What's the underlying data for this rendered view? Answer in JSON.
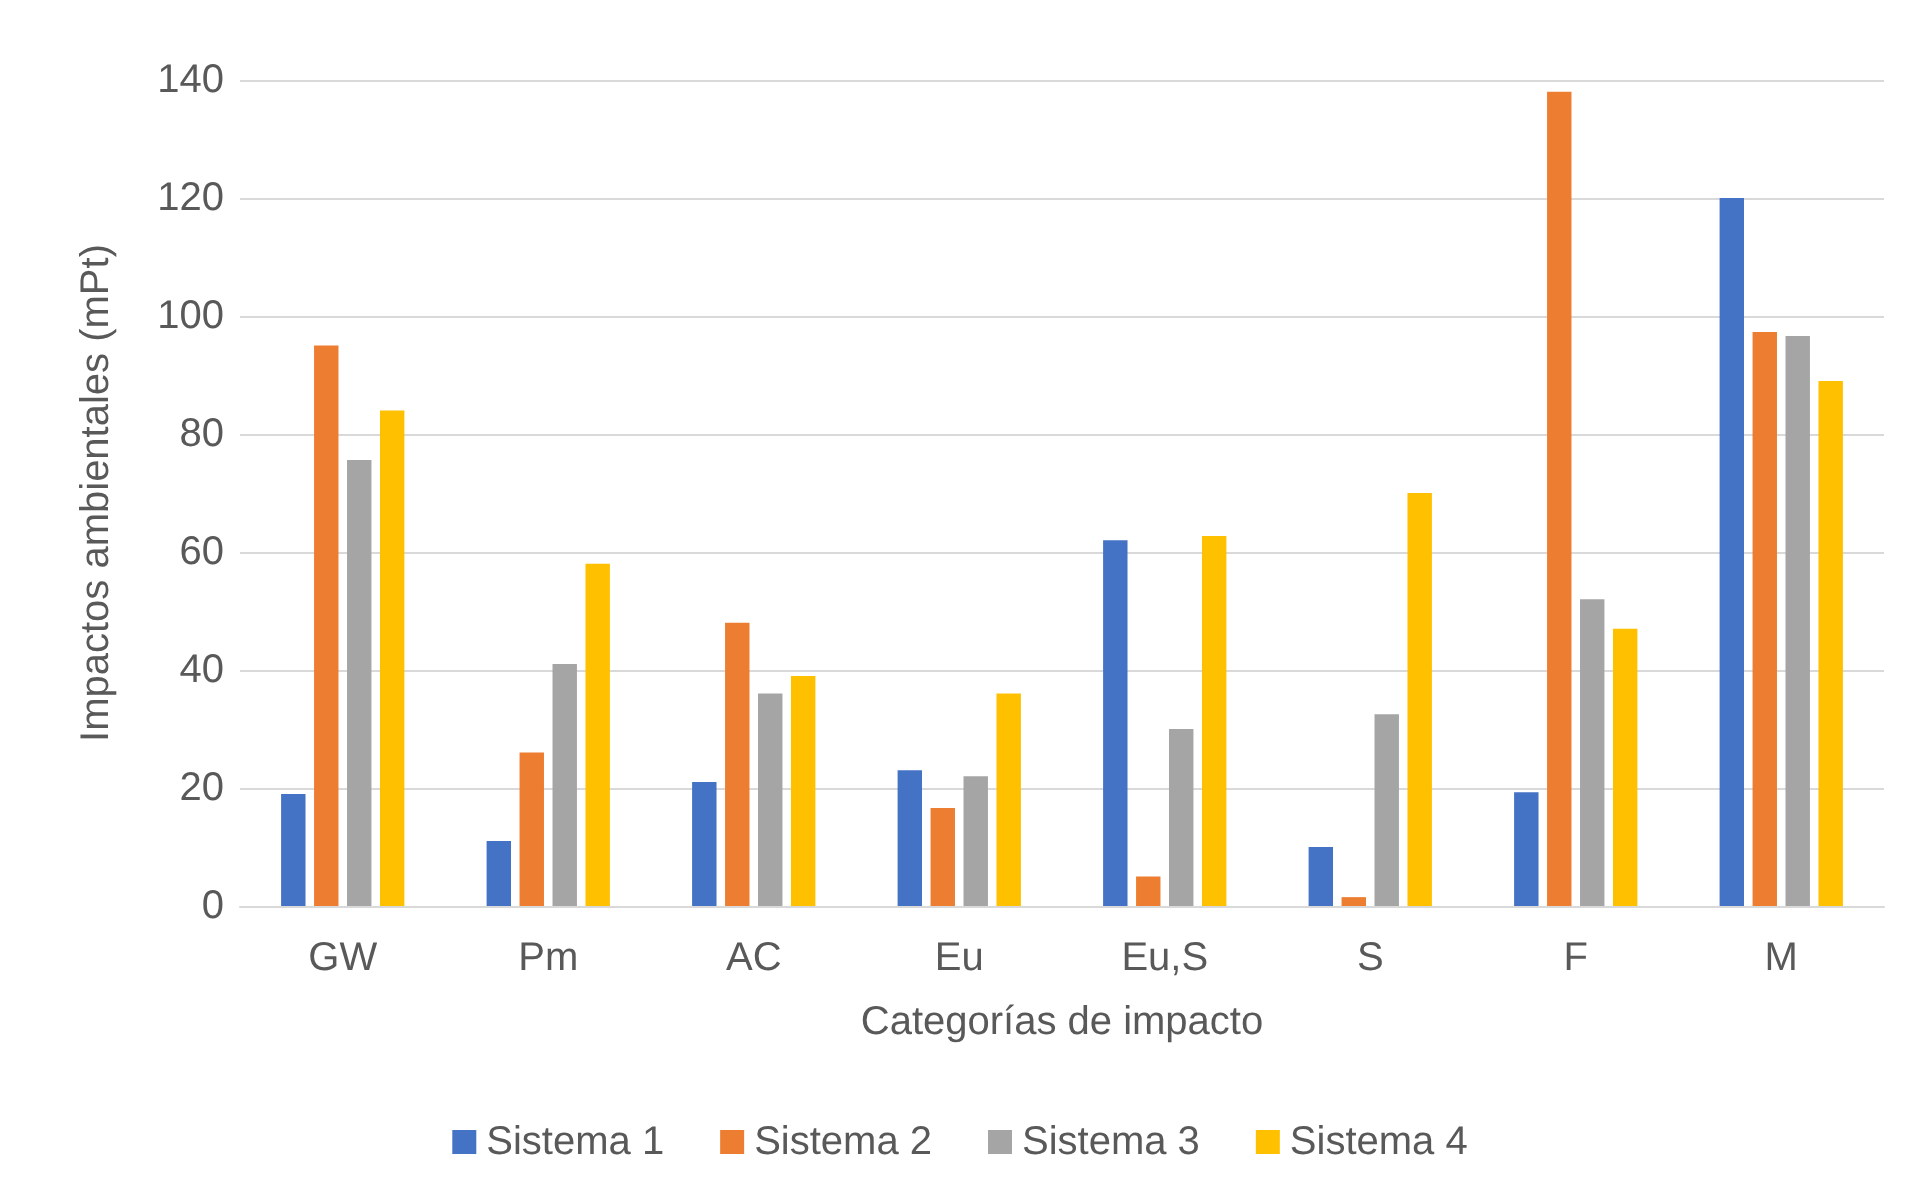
{
  "chart_data": {
    "type": "bar",
    "xlabel": "Categorías de impacto",
    "ylabel": "Impactos ambientales (mPt)",
    "categories": [
      "GW",
      "Pm",
      "AC",
      "Eu",
      "Eu,S",
      "S",
      "F",
      "M"
    ],
    "series": [
      {
        "name": "Sistema 1",
        "color": "#4472c4",
        "values": [
          19,
          11,
          21,
          23,
          62,
          10,
          19.3,
          120
        ]
      },
      {
        "name": "Sistema 2",
        "color": "#ed7d31",
        "values": [
          95,
          26,
          48,
          16.6,
          5,
          1.5,
          138,
          97.3
        ]
      },
      {
        "name": "Sistema 3",
        "color": "#a5a5a5",
        "values": [
          75.6,
          41,
          36,
          22,
          30,
          32.5,
          52,
          96.6
        ]
      },
      {
        "name": "Sistema 4",
        "color": "#ffc000",
        "values": [
          84,
          58,
          39,
          36,
          62.7,
          70,
          47,
          89
        ]
      }
    ],
    "ylim": [
      0,
      140
    ],
    "yticks": [
      0,
      20,
      40,
      60,
      80,
      100,
      120,
      140
    ],
    "grid": "y",
    "legend": "bottom"
  }
}
